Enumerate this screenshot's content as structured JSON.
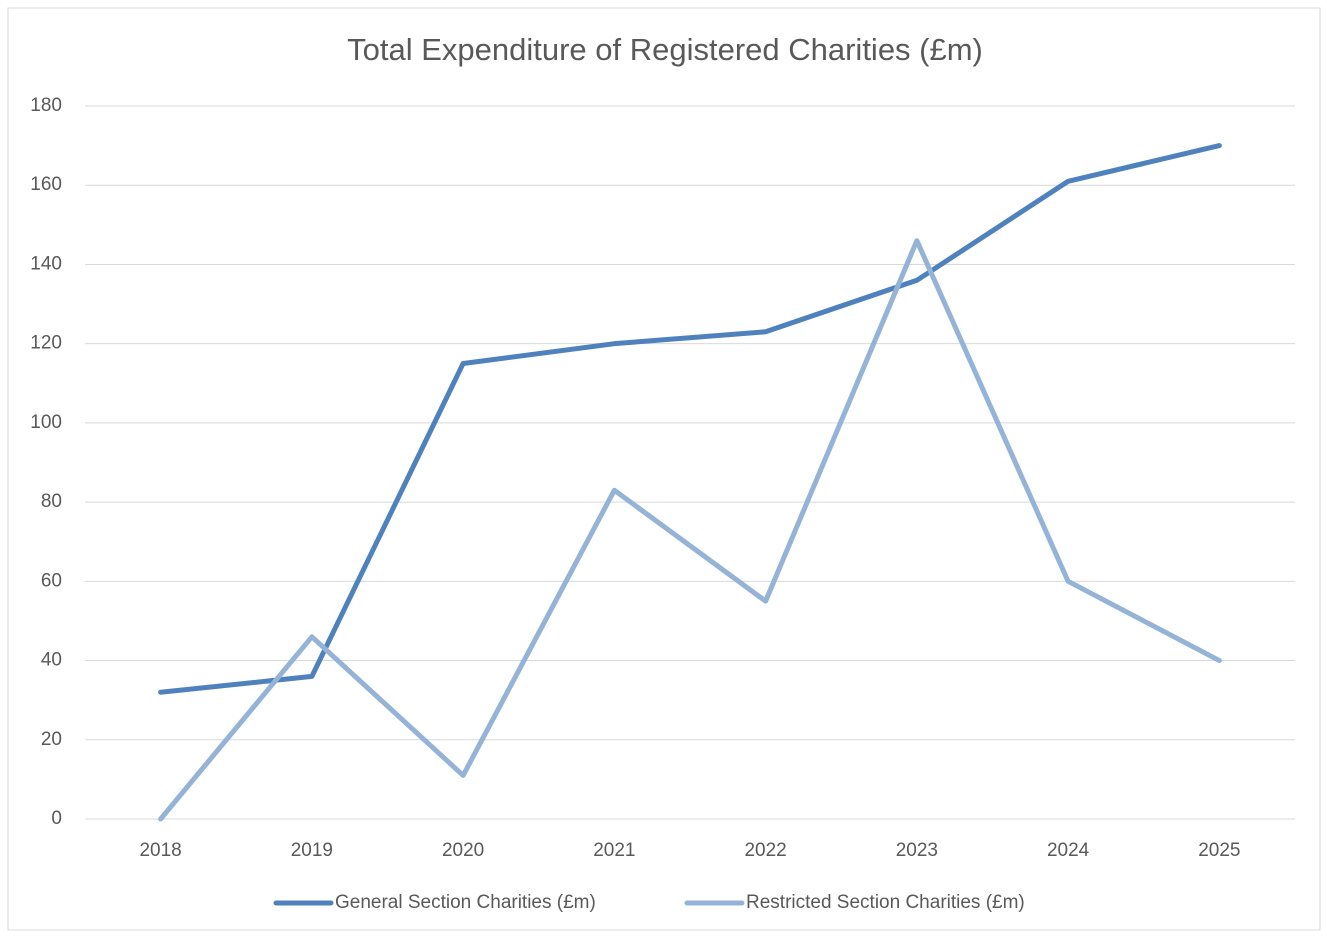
{
  "chart_data": {
    "type": "line",
    "title": "Total Expenditure of Registered Charities (£m)",
    "categories": [
      "2018",
      "2019",
      "2020",
      "2021",
      "2022",
      "2023",
      "2024",
      "2025"
    ],
    "series": [
      {
        "name": "General Section Charities (£m)",
        "color": "#4f81bd",
        "values": [
          32,
          36,
          115,
          120,
          123,
          136,
          161,
          170
        ]
      },
      {
        "name": "Restricted Section Charities (£m)",
        "color": "#95b3d7",
        "values": [
          0,
          46,
          11,
          83,
          55,
          146,
          60,
          40
        ]
      }
    ],
    "ylim": [
      0,
      180
    ],
    "yticks": [
      0,
      20,
      40,
      60,
      80,
      100,
      120,
      140,
      160,
      180
    ],
    "grid": true,
    "legend": "bottom"
  }
}
